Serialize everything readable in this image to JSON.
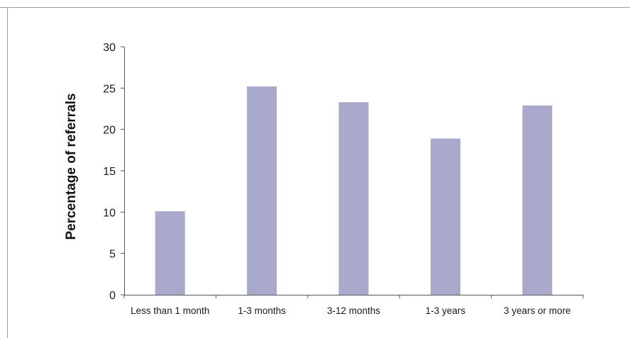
{
  "colors": {
    "bar": "#a9a9cc",
    "axis": "#555555",
    "frame": "#9a9a9a",
    "text": "#1a1a1a"
  },
  "chart_data": {
    "type": "bar",
    "title": "",
    "xlabel": "",
    "ylabel": "Percentage of referrals",
    "categories": [
      "Less than 1 month",
      "1-3 months",
      "3-12 months",
      "1-3 years",
      "3 years or more"
    ],
    "values": [
      10.1,
      25.2,
      23.3,
      18.9,
      22.9
    ],
    "ylim": [
      0,
      30
    ],
    "yticks": [
      0,
      5,
      10,
      15,
      20,
      25,
      30
    ],
    "grid": false,
    "legend": "none"
  }
}
